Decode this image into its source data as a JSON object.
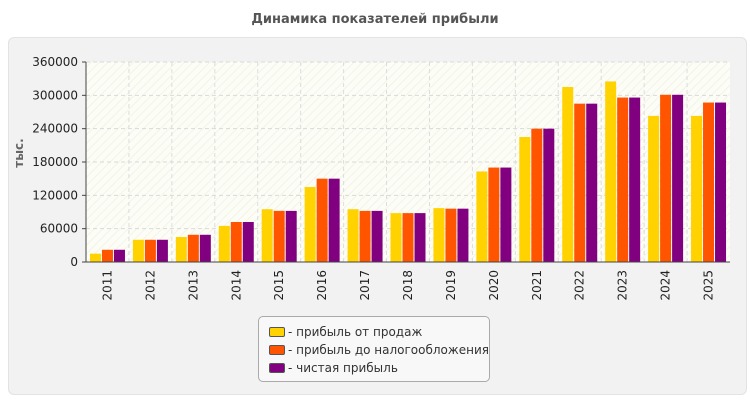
{
  "title": "Динамика показателей прибыли",
  "chart_data": {
    "type": "bar",
    "title": "Динамика показателей прибыли",
    "xlabel": "",
    "ylabel": "тыс.",
    "ylim": [
      0,
      360000
    ],
    "yticks": [
      "0",
      "60000",
      "120000",
      "180000",
      "240000",
      "300000",
      "360000"
    ],
    "categories": [
      "2011",
      "2012",
      "2013",
      "2014",
      "2015",
      "2016",
      "2017",
      "2018",
      "2019",
      "2020",
      "2021",
      "2022",
      "2023",
      "2024",
      "2025"
    ],
    "series": [
      {
        "name": "- прибыль от продаж",
        "color": "#ffd200",
        "values": [
          15000,
          40000,
          45000,
          65000,
          95000,
          135000,
          95000,
          88000,
          97000,
          163000,
          225000,
          315000,
          325000,
          263000,
          263000
        ]
      },
      {
        "name": "- прибыль до налогообложения",
        "color": "#ff5500",
        "values": [
          22000,
          40000,
          49000,
          72000,
          92000,
          150000,
          92000,
          88000,
          96000,
          170000,
          240000,
          285000,
          296000,
          301000,
          287000
        ]
      },
      {
        "name": "- чистая прибыль",
        "color": "#800080",
        "values": [
          22000,
          40000,
          49000,
          72000,
          92000,
          150000,
          92000,
          88000,
          96000,
          170000,
          240000,
          285000,
          296000,
          301000,
          287000
        ]
      }
    ],
    "grid": true,
    "legend_position": "bottom-center"
  }
}
